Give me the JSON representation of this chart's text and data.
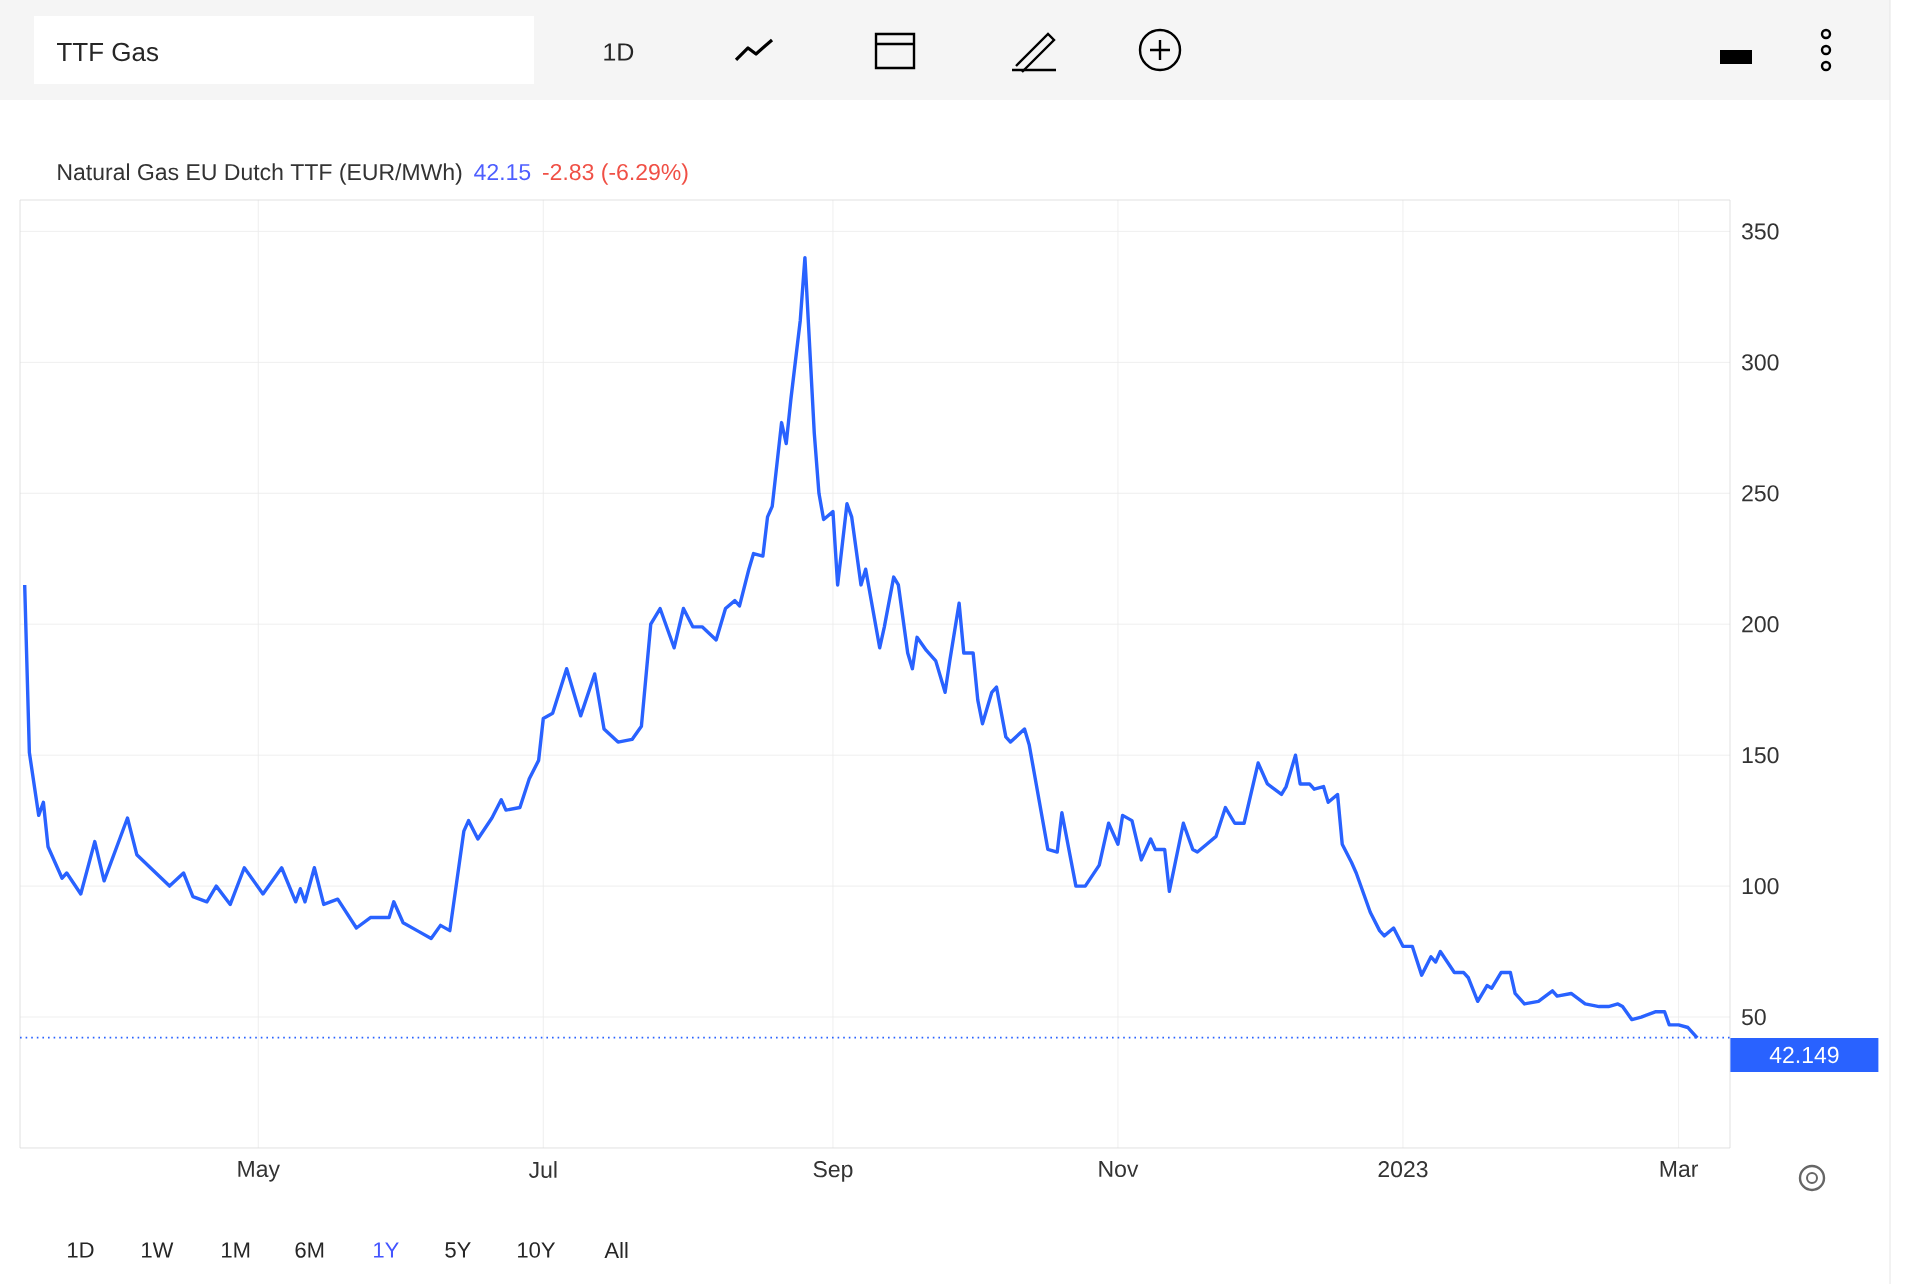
{
  "chart_data": {
    "type": "line",
    "title": "Natural Gas EU Dutch TTF (EUR/MWh)",
    "annotations": [
      "42.15",
      "-2.83 (-6.29%)",
      "TTF Gas",
      "1D",
      "1D",
      "1W",
      "1M",
      "6M",
      "1Y",
      "5Y",
      "10Y",
      "All"
    ],
    "x": [
      "2022-03-12",
      "2022-03-13",
      "2022-03-15",
      "2022-03-16",
      "2022-03-17",
      "2022-03-20",
      "2022-03-21",
      "2022-03-24",
      "2022-03-27",
      "2022-03-29",
      "2022-04-03",
      "2022-04-05",
      "2022-04-12",
      "2022-04-15",
      "2022-04-17",
      "2022-04-20",
      "2022-04-22",
      "2022-04-25",
      "2022-04-28",
      "2022-05-02",
      "2022-05-06",
      "2022-05-09",
      "2022-05-10",
      "2022-05-11",
      "2022-05-13",
      "2022-05-15",
      "2022-05-18",
      "2022-05-22",
      "2022-05-25",
      "2022-05-29",
      "2022-05-30",
      "2022-06-01",
      "2022-06-04",
      "2022-06-07",
      "2022-06-09",
      "2022-06-11",
      "2022-06-14",
      "2022-06-15",
      "2022-06-17",
      "2022-06-20",
      "2022-06-22",
      "2022-06-23",
      "2022-06-26",
      "2022-06-28",
      "2022-06-30",
      "2022-07-01",
      "2022-07-03",
      "2022-07-06",
      "2022-07-09",
      "2022-07-12",
      "2022-07-14",
      "2022-07-17",
      "2022-07-20",
      "2022-07-22",
      "2022-07-24",
      "2022-07-26",
      "2022-07-29",
      "2022-07-31",
      "2022-08-02",
      "2022-08-04",
      "2022-08-07",
      "2022-08-09",
      "2022-08-11",
      "2022-08-12",
      "2022-08-14",
      "2022-08-15",
      "2022-08-17",
      "2022-08-18",
      "2022-08-19",
      "2022-08-21",
      "2022-08-22",
      "2022-08-23",
      "2022-08-25",
      "2022-08-26",
      "2022-08-28",
      "2022-08-29",
      "2022-08-30",
      "2022-09-01",
      "2022-09-02",
      "2022-09-04",
      "2022-09-05",
      "2022-09-07",
      "2022-09-08",
      "2022-09-11",
      "2022-09-12",
      "2022-09-14",
      "2022-09-15",
      "2022-09-17",
      "2022-09-18",
      "2022-09-19",
      "2022-09-21",
      "2022-09-23",
      "2022-09-25",
      "2022-09-26",
      "2022-09-28",
      "2022-09-29",
      "2022-10-01",
      "2022-10-02",
      "2022-10-03",
      "2022-10-05",
      "2022-10-06",
      "2022-10-08",
      "2022-10-09",
      "2022-10-12",
      "2022-10-13",
      "2022-10-17",
      "2022-10-19",
      "2022-10-20",
      "2022-10-23",
      "2022-10-25",
      "2022-10-28",
      "2022-10-30",
      "2022-11-01",
      "2022-11-02",
      "2022-11-04",
      "2022-11-06",
      "2022-11-08",
      "2022-11-09",
      "2022-11-11",
      "2022-11-12",
      "2022-11-15",
      "2022-11-17",
      "2022-11-18",
      "2022-11-20",
      "2022-11-22",
      "2022-11-24",
      "2022-11-26",
      "2022-11-28",
      "2022-12-01",
      "2022-12-03",
      "2022-12-06",
      "2022-12-07",
      "2022-12-09",
      "2022-12-10",
      "2022-12-12",
      "2022-12-13",
      "2022-12-15",
      "2022-12-16",
      "2022-12-18",
      "2022-12-19",
      "2022-12-21",
      "2022-12-22",
      "2022-12-25",
      "2022-12-27",
      "2022-12-28",
      "2022-12-30",
      "2023-01-01",
      "2023-01-03",
      "2023-01-05",
      "2023-01-07",
      "2023-01-08",
      "2023-01-09",
      "2023-01-12",
      "2023-01-14",
      "2023-01-15",
      "2023-01-17",
      "2023-01-19",
      "2023-01-20",
      "2023-01-22",
      "2023-01-24",
      "2023-01-25",
      "2023-01-27",
      "2023-01-30",
      "2023-02-02",
      "2023-02-03",
      "2023-02-06",
      "2023-02-09",
      "2023-02-12",
      "2023-02-14",
      "2023-02-16",
      "2023-02-17",
      "2023-02-19",
      "2023-02-21",
      "2023-02-24",
      "2023-02-26",
      "2023-02-27",
      "2023-03-01",
      "2023-03-03",
      "2023-03-05"
    ],
    "values": [
      215,
      151,
      127,
      132,
      115,
      103,
      105,
      97,
      117,
      102,
      126,
      112,
      100,
      105,
      96,
      94,
      100,
      93,
      107,
      97,
      107,
      94,
      99,
      94,
      107,
      93,
      95,
      84,
      88,
      88,
      94,
      86,
      83,
      80,
      85,
      83,
      121,
      125,
      118,
      126,
      133,
      129,
      130,
      141,
      148,
      164,
      166,
      183,
      165,
      181,
      160,
      155,
      156,
      161,
      200,
      206,
      191,
      206,
      199,
      199,
      194,
      206,
      209,
      207,
      221,
      227,
      226,
      241,
      245,
      277,
      269,
      286,
      316,
      340,
      273,
      250,
      240,
      243,
      215,
      246,
      241,
      215,
      221,
      191,
      199,
      218,
      215,
      189,
      183,
      195,
      190,
      186,
      174,
      186,
      208,
      189,
      189,
      171,
      162,
      174,
      176,
      157,
      155,
      160,
      154,
      114,
      113,
      128,
      100,
      100,
      108,
      124,
      116,
      127,
      125,
      110,
      118,
      114,
      114,
      98,
      124,
      114,
      113,
      116,
      119,
      130,
      124,
      124,
      147,
      139,
      135,
      138,
      150,
      139,
      139,
      137,
      138,
      132,
      135,
      116,
      109,
      105,
      90,
      83,
      81,
      84,
      77,
      77,
      66,
      73,
      71,
      75,
      67,
      67,
      65,
      56,
      62,
      61,
      67,
      67,
      59,
      55,
      56,
      60,
      58,
      59,
      55,
      54,
      54,
      55,
      54,
      49,
      50,
      52,
      52,
      47,
      47,
      46,
      42
    ],
    "color": "#2962ff",
    "xlim": [
      "2022-03-11",
      "2023-03-12"
    ],
    "xticks": [
      {
        "value": "2022-05-01",
        "label": "May"
      },
      {
        "value": "2022-07-01",
        "label": "Jul"
      },
      {
        "value": "2022-09-01",
        "label": "Sep"
      },
      {
        "value": "2022-11-01",
        "label": "Nov"
      },
      {
        "value": "2023-01-01",
        "label": "2023"
      },
      {
        "value": "2023-03-01",
        "label": "Mar"
      }
    ],
    "ylim": [
      0,
      362
    ],
    "yticks": [
      50,
      100,
      150,
      200,
      250,
      300,
      350
    ],
    "grid": true,
    "ref_lines": [
      {
        "axis": "y",
        "value": 42.149,
        "label": "42.149",
        "color": "#2962ff",
        "line_style": "dotted"
      }
    ]
  }
}
